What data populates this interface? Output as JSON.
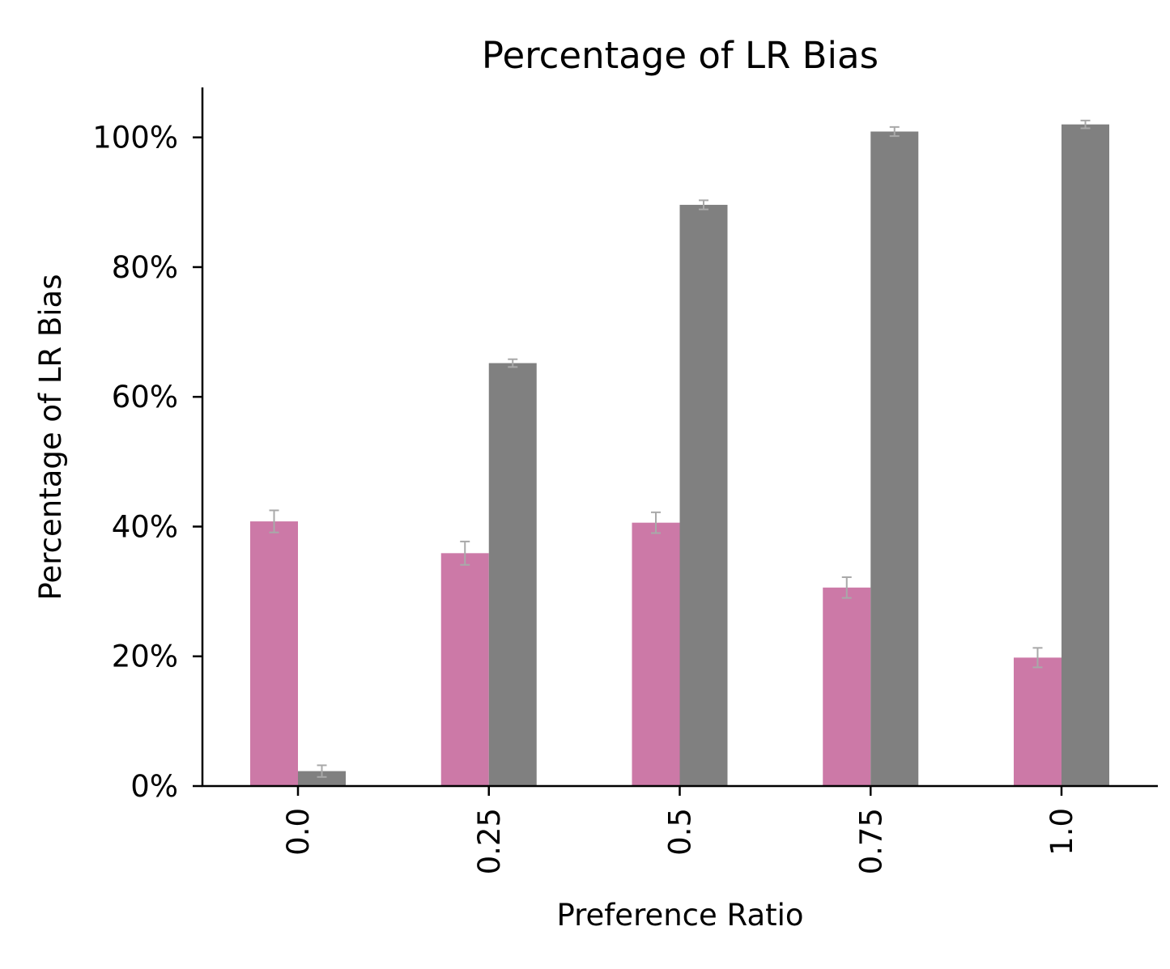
{
  "chart_data": {
    "type": "bar",
    "title": "Percentage of LR Bias",
    "xlabel": "Preference Ratio",
    "ylabel": "Percentage of LR Bias",
    "categories": [
      "0.0",
      "0.25",
      "0.5",
      "0.75",
      "1.0"
    ],
    "ylim": [
      0,
      107.7
    ],
    "yticks": [
      0,
      20,
      40,
      60,
      80,
      100
    ],
    "ytick_labels": [
      "0%",
      "20%",
      "40%",
      "60%",
      "80%",
      "100%"
    ],
    "x_tick_rotation": "vertical",
    "grid": false,
    "legend": "none",
    "series": [
      {
        "color": "#cc79a7",
        "values": [
          40.8,
          35.9,
          40.6,
          30.6,
          19.8
        ],
        "errors": [
          1.7,
          1.8,
          1.6,
          1.6,
          1.5
        ]
      },
      {
        "color": "#808080",
        "values": [
          2.3,
          65.2,
          89.6,
          100.9,
          102.0
        ],
        "errors": [
          0.9,
          0.6,
          0.7,
          0.7,
          0.6
        ]
      }
    ],
    "error_bar_color": "#a9a9a9",
    "axis_color": "#000000"
  }
}
